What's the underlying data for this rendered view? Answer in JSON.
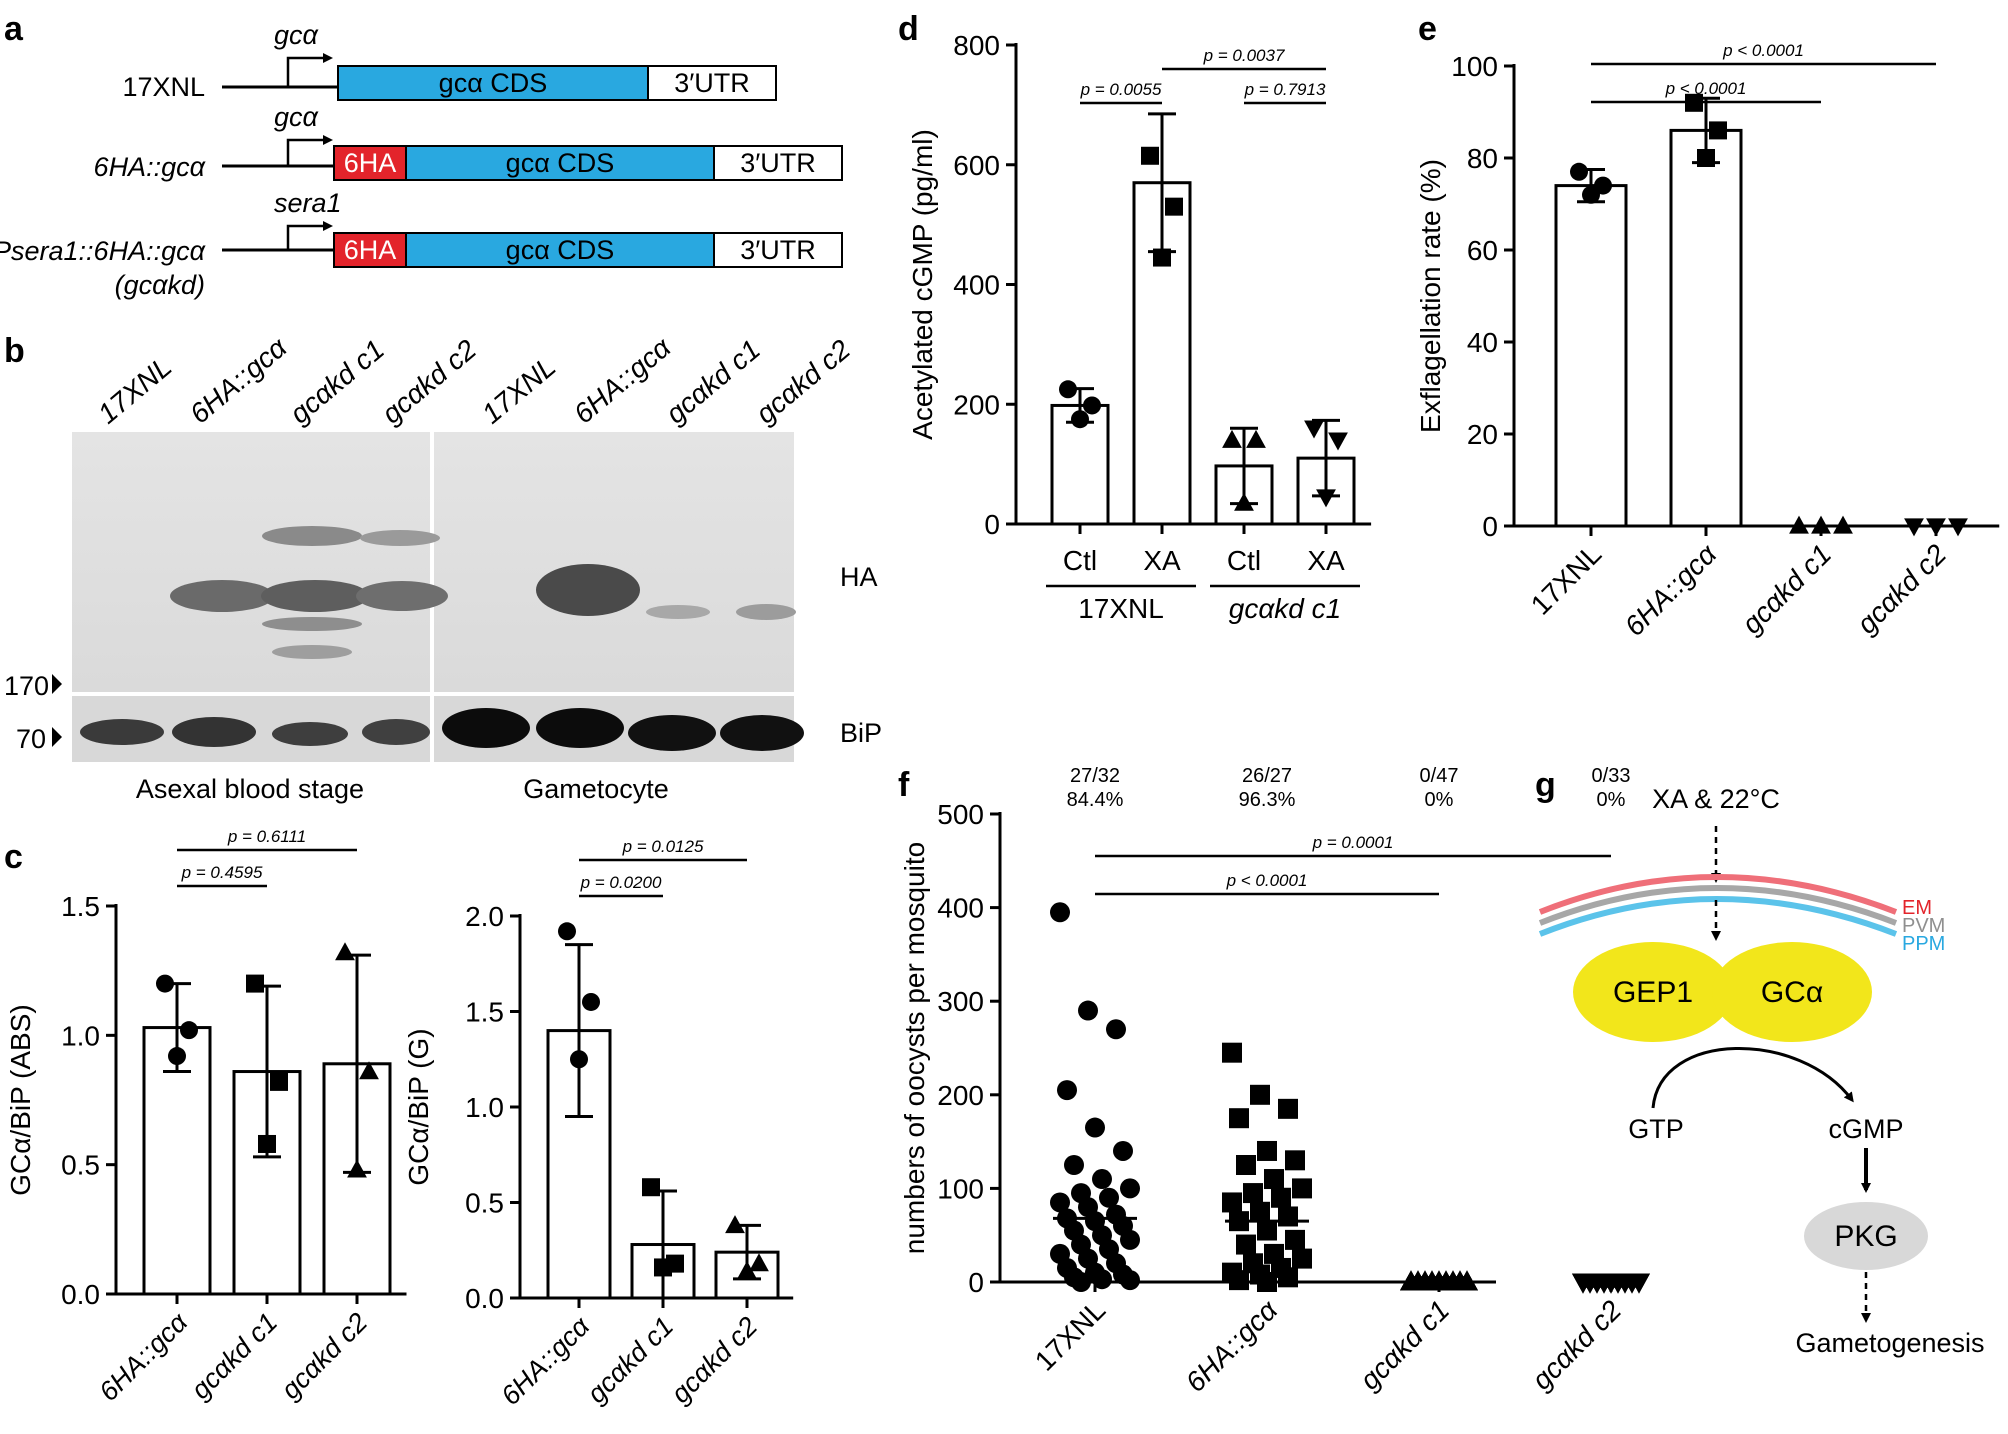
{
  "panel_labels": {
    "a": "a",
    "b": "b",
    "c": "c",
    "d": "d",
    "e": "e",
    "f": "f",
    "g": "g"
  },
  "colors": {
    "cds": "#29a8e0",
    "ha_tag": "#e3242b",
    "em": "#ef6f79",
    "pvm": "#a7a7a7",
    "ppm": "#5bc3ea",
    "gep": "#f2e61b",
    "pkg": "#d8d8d8"
  },
  "panel_a": {
    "constructs": [
      {
        "name": "17XNL",
        "promoter": "gcα",
        "tag": "",
        "cds": "gcα CDS",
        "utr": "3′UTR"
      },
      {
        "name": "6HA::gcα",
        "promoter": "gcα",
        "tag": "6HA",
        "cds": "gcα CDS",
        "utr": "3′UTR"
      },
      {
        "name": "Psera1::6HA::gcα",
        "name2": "(gcαkd)",
        "promoter": "sera1",
        "tag": "6HA",
        "cds": "gcα CDS",
        "utr": "3′UTR"
      }
    ]
  },
  "panel_b": {
    "lanes": [
      "17XNL",
      "6HA::gcα",
      "gcαkd c1",
      "gcαkd c2",
      "17XNL",
      "6HA::gcα",
      "gcαkd c1",
      "gcαkd c2"
    ],
    "markers": [
      "170",
      "70"
    ],
    "bands": [
      "HA",
      "BiP"
    ],
    "groups": [
      "Asexal blood stage",
      "Gametocyte"
    ]
  },
  "panel_g": {
    "stimulus": "XA & 22°C",
    "membranes": [
      "EM",
      "PVM",
      "PPM"
    ],
    "proteins": [
      "GEP1",
      "GCα"
    ],
    "substrate": "GTP",
    "product": "cGMP",
    "kinase": "PKG",
    "outcome": "Gametogenesis"
  },
  "chart_data": [
    {
      "id": "c-left",
      "type": "bar",
      "ylabel": "GCα/BiP (ABS)",
      "ylim": [
        0,
        1.5
      ],
      "yticks": [
        "0.0",
        "0.5",
        "1.0",
        "1.5"
      ],
      "categories": [
        "6HA::gcα",
        "gcαkd c1",
        "gcαkd c2"
      ],
      "values": [
        1.03,
        0.86,
        0.89
      ],
      "errors": [
        0.17,
        0.33,
        0.42
      ],
      "points": [
        [
          1.2,
          1.02,
          0.92
        ],
        [
          1.2,
          0.82,
          0.58
        ],
        [
          1.32,
          0.86,
          0.48
        ]
      ],
      "markers": [
        "circle",
        "square",
        "triangle"
      ],
      "pvalues": [
        {
          "label": "p = 0.4595",
          "from": 0,
          "to": 1,
          "level": 1
        },
        {
          "label": "p = 0.6111",
          "from": 0,
          "to": 2,
          "level": 2
        }
      ]
    },
    {
      "id": "c-right",
      "type": "bar",
      "ylabel": "GCα/BiP (G)",
      "ylim": [
        0,
        2.0
      ],
      "yticks": [
        "0.0",
        "0.5",
        "1.0",
        "1.5",
        "2.0"
      ],
      "categories": [
        "6HA::gcα",
        "gcαkd c1",
        "gcαkd c2"
      ],
      "values": [
        1.4,
        0.28,
        0.24
      ],
      "errors": [
        0.45,
        0.28,
        0.14
      ],
      "points": [
        [
          1.92,
          1.55,
          1.25
        ],
        [
          0.58,
          0.18,
          0.16
        ],
        [
          0.38,
          0.18,
          0.14
        ]
      ],
      "markers": [
        "circle",
        "square",
        "triangle"
      ],
      "pvalues": [
        {
          "label": "p = 0.0200",
          "from": 0,
          "to": 1,
          "level": 1
        },
        {
          "label": "p = 0.0125",
          "from": 0,
          "to": 2,
          "level": 2
        }
      ]
    },
    {
      "id": "d",
      "type": "bar",
      "ylabel": "Acetylated cGMP (pg/ml)",
      "ylim": [
        0,
        800
      ],
      "yticks": [
        "0",
        "200",
        "400",
        "600",
        "800"
      ],
      "categories": [
        "Ctl",
        "XA",
        "Ctl",
        "XA"
      ],
      "groups": [
        {
          "label": "17XNL",
          "from": 0,
          "to": 1
        },
        {
          "label": "gcαkd c1",
          "from": 2,
          "to": 3
        }
      ],
      "values": [
        198,
        570,
        97,
        110
      ],
      "errors": [
        28,
        115,
        63,
        63
      ],
      "points": [
        [
          225,
          198,
          175
        ],
        [
          615,
          530,
          445
        ],
        [
          140,
          140,
          35
        ],
        [
          160,
          140,
          45
        ]
      ],
      "markers": [
        "circle",
        "square",
        "triangle",
        "triangle-down"
      ],
      "pvalues": [
        {
          "label": "p = 0.0055",
          "from": 0,
          "to": 1,
          "level": 1
        },
        {
          "label": "p = 0.7913",
          "from": 2,
          "to": 3,
          "level": 1
        },
        {
          "label": "p = 0.0037",
          "from": 1,
          "to": 3,
          "level": 2
        }
      ]
    },
    {
      "id": "e",
      "type": "bar",
      "ylabel": "Exflagellation rate (%)",
      "ylim": [
        0,
        100
      ],
      "yticks": [
        "0",
        "20",
        "40",
        "60",
        "80",
        "100"
      ],
      "categories": [
        "17XNL",
        "6HA::gcα",
        "gcαkd c1",
        "gcαkd c2"
      ],
      "values": [
        74,
        86,
        0,
        0
      ],
      "errors": [
        3.5,
        7,
        0,
        0
      ],
      "points": [
        [
          77,
          74,
          72
        ],
        [
          92,
          86,
          80
        ],
        [
          0,
          0,
          0
        ],
        [
          0,
          0,
          0
        ]
      ],
      "markers": [
        "circle",
        "square",
        "triangle",
        "triangle-down"
      ],
      "pvalues": [
        {
          "label": "p < 0.0001",
          "from": 0,
          "to": 2,
          "level": 1
        },
        {
          "label": "p < 0.0001",
          "from": 0,
          "to": 3,
          "level": 2
        }
      ]
    },
    {
      "id": "f",
      "type": "scatter",
      "ylabel": "numbers of oocysts per mosquito",
      "ylim": [
        0,
        500
      ],
      "yticks": [
        "0",
        "100",
        "200",
        "300",
        "400",
        "500"
      ],
      "categories": [
        "17XNL",
        "6HA::gcα",
        "gcαkd c1",
        "gcαkd c2"
      ],
      "fractions": [
        "27/32",
        "26/27",
        "0/47",
        "0/33"
      ],
      "percents": [
        "84.4%",
        "96.3%",
        "0%",
        "0%"
      ],
      "medians": [
        68,
        65,
        0,
        0
      ],
      "markers": [
        "circle",
        "square",
        "triangle",
        "triangle-down"
      ],
      "points": [
        [
          395,
          290,
          270,
          205,
          165,
          140,
          125,
          110,
          100,
          95,
          90,
          85,
          80,
          72,
          68,
          65,
          60,
          55,
          50,
          45,
          40,
          35,
          30,
          25,
          20,
          15,
          10,
          8,
          5,
          3,
          2,
          0
        ],
        [
          245,
          200,
          185,
          175,
          140,
          130,
          125,
          110,
          100,
          95,
          90,
          85,
          75,
          70,
          65,
          55,
          45,
          40,
          30,
          25,
          20,
          15,
          10,
          8,
          5,
          2,
          0
        ],
        [
          0,
          0,
          0,
          0,
          0,
          0,
          0,
          0,
          0,
          0,
          0,
          0,
          0,
          0,
          0,
          0,
          0,
          0,
          0,
          0,
          0,
          0,
          0,
          0,
          0,
          0,
          0,
          0,
          0,
          0,
          0,
          0,
          0,
          0,
          0,
          0,
          0,
          0,
          0,
          0,
          0,
          0,
          0,
          0,
          0,
          0,
          0
        ],
        [
          0,
          0,
          0,
          0,
          0,
          0,
          0,
          0,
          0,
          0,
          0,
          0,
          0,
          0,
          0,
          0,
          0,
          0,
          0,
          0,
          0,
          0,
          0,
          0,
          0,
          0,
          0,
          0,
          0,
          0,
          0,
          0,
          0
        ]
      ],
      "pvalues": [
        {
          "label": "p < 0.0001",
          "from": 0,
          "to": 2,
          "level": 1
        },
        {
          "label": "p = 0.0001",
          "from": 0,
          "to": 3,
          "level": 2
        }
      ]
    }
  ]
}
